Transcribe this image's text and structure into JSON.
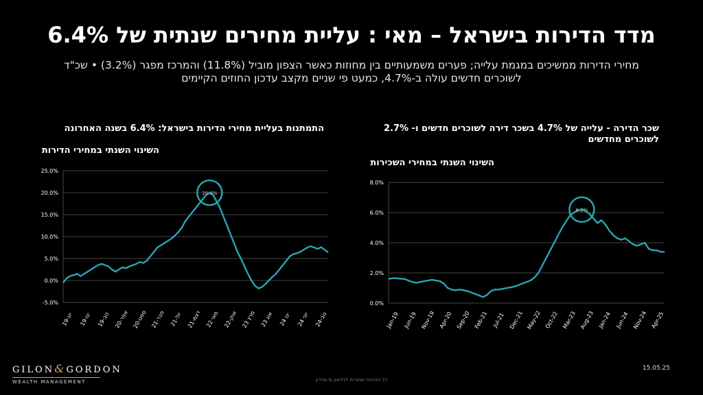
{
  "header": {
    "title": "מדד הדירות בישראל – מאי : עליית מחירים שנתית של 6.4%",
    "subtitle_line1": "מחירי הדירות ממשיכים במגמת עלייה; פערים משמעותיים בין מחוזות כאשר הצפון מוביל (11.8%) והמרכז מפגר (3.2%) • שכ\"ד",
    "subtitle_line2": "לשוכרים חדשים עולה ב-4.7%, כמעט פי שניים מקצב עדכון החוזים הקיימים"
  },
  "left_chart": {
    "title": "התמתנות בעליית מחירי הדירות בישראל: 6.4% בשנה האחרונה",
    "subtitle": "השינוי השנתי במחירי הדירות"
  },
  "right_chart": {
    "title_line1": "שכר הדירה - עלייה של 4.7% בשכר דירה לשוכרים חדשים ו- 2.7%",
    "title_line2": "לשוכרים מחדשים",
    "subtitle": "השינוי השנתי במחירי השכירות"
  },
  "footer": {
    "logo_left": "GILON",
    "logo_amp": "&",
    "logo_right": "GORDON",
    "logo_sub": "WEALTH MANAGEMENT",
    "date": "15.05.25",
    "copyright": "כל הזכויות שמורות לגילאון & גורדון"
  },
  "colors": {
    "line": "#2aa5b3",
    "circle": "#2aa5b3",
    "grid": "#444444",
    "background": "#000000"
  },
  "chart_data": [
    {
      "type": "line",
      "title": "התמתנות בעליית מחירי הדירות בישראל: 6.4% בשנה האחרונה",
      "ylabel": "השינוי השנתי במחירי הדירות",
      "ylim": [
        -5,
        25
      ],
      "yticks": [
        25,
        20,
        15,
        10,
        5,
        0,
        -5
      ],
      "ytick_labels": [
        "25.0%",
        "20.0%",
        "15.0%",
        "10.0%",
        "5.0%",
        "0.0%",
        "-5.0%"
      ],
      "xtick_labels": [
        "יונ-19",
        "ינו-19",
        "נוב-19",
        "אפר-20",
        "ספט-20",
        "פבר-21",
        "יול-21",
        "דצמ-21",
        "מאי 22",
        "אוק-22",
        "מרץ 23",
        "אוג 23",
        "ינו 24",
        "יוני 24",
        "נוב-24"
      ],
      "annotation": {
        "label": "20.0%",
        "y": 20.0
      },
      "grid": true,
      "values": [
        -0.5,
        0.5,
        1.0,
        1.2,
        1.5,
        1.0,
        1.5,
        2.0,
        2.5,
        3.0,
        3.5,
        3.8,
        3.5,
        3.2,
        2.5,
        2.0,
        2.5,
        3.0,
        2.8,
        3.2,
        3.5,
        3.8,
        4.2,
        4.0,
        4.5,
        5.5,
        6.5,
        7.5,
        8.0,
        8.5,
        9.0,
        9.5,
        10.2,
        11.0,
        12.0,
        13.5,
        14.5,
        15.5,
        16.5,
        17.5,
        18.5,
        19.5,
        20.0,
        19.5,
        18.0,
        16.5,
        14.5,
        12.5,
        10.5,
        8.5,
        6.5,
        5.0,
        3.2,
        1.5,
        0.0,
        -1.2,
        -1.8,
        -1.5,
        -0.8,
        0.0,
        0.8,
        1.5,
        2.5,
        3.5,
        4.5,
        5.5,
        6.0,
        6.2,
        6.5,
        7.0,
        7.5,
        7.8,
        7.5,
        7.2,
        7.6,
        7.0,
        6.4
      ]
    },
    {
      "type": "line",
      "title": "שכר הדירה - עלייה של 4.7% בשכר דירה לשוכרים חדשים ו- 2.7% לשוכרים מחדשים",
      "ylabel": "השינוי השנתי במחירי השכירות",
      "ylim": [
        0,
        8
      ],
      "yticks": [
        8,
        6,
        4,
        2,
        0
      ],
      "ytick_labels": [
        "8.0%",
        "6.0%",
        "4.0%",
        "2.0%",
        "0.0%"
      ],
      "xtick_labels": [
        "Jan-19",
        "Jun-19",
        "Nov-19",
        "Apr-20",
        "Sep-20",
        "Feb-21",
        "Jul-21",
        "Dec-21",
        "May-22",
        "Oct-22",
        "Mar-23",
        "Aug-23",
        "Jan-24",
        "Jun-24",
        "Nov-24",
        "Apr-25"
      ],
      "annotation": {
        "label": "6.2%",
        "y": 6.2
      },
      "grid": true,
      "values": [
        1.6,
        1.65,
        1.65,
        1.62,
        1.6,
        1.5,
        1.4,
        1.35,
        1.4,
        1.45,
        1.5,
        1.55,
        1.5,
        1.45,
        1.3,
        1.0,
        0.9,
        0.85,
        0.9,
        0.85,
        0.8,
        0.7,
        0.6,
        0.5,
        0.4,
        0.55,
        0.8,
        0.9,
        0.9,
        0.95,
        1.0,
        1.05,
        1.1,
        1.2,
        1.3,
        1.4,
        1.5,
        1.7,
        2.0,
        2.5,
        3.0,
        3.5,
        4.0,
        4.5,
        5.0,
        5.4,
        5.8,
        6.0,
        6.15,
        6.2,
        6.1,
        5.9,
        5.6,
        5.3,
        5.5,
        5.2,
        4.8,
        4.5,
        4.3,
        4.2,
        4.3,
        4.1,
        3.9,
        3.8,
        3.9,
        4.0,
        3.6,
        3.5,
        3.5,
        3.4,
        3.4
      ]
    }
  ]
}
